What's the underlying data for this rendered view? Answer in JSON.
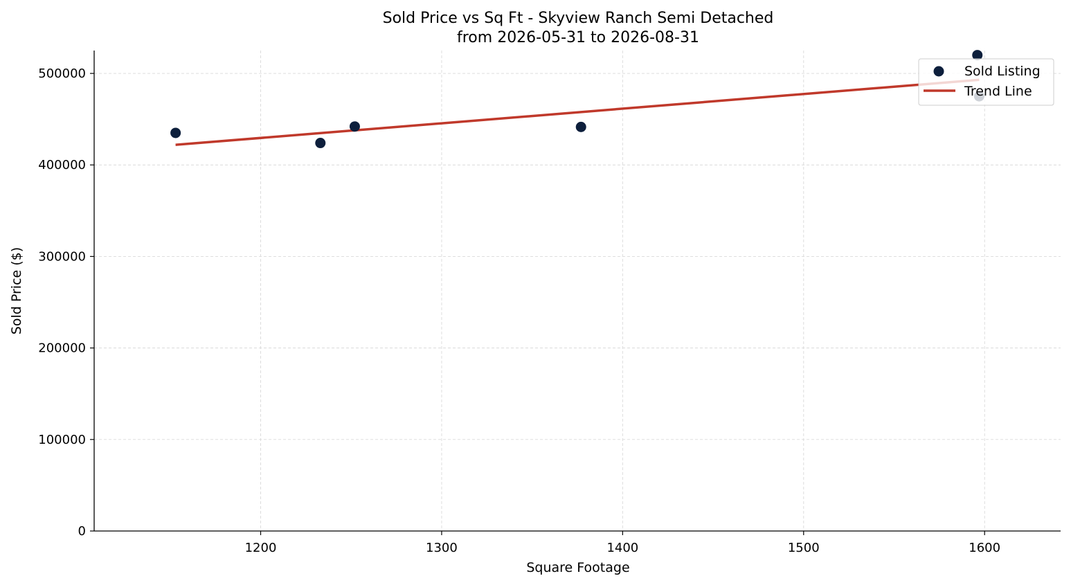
{
  "chart_data": {
    "type": "scatter",
    "title": "Sold Price vs Sq Ft - Skyview Ranch Semi Detached",
    "subtitle": "from 2026-05-31 to 2026-08-31",
    "xlabel": "Square Footage",
    "ylabel": "Sold Price ($)",
    "xlim": [
      1108,
      1642
    ],
    "ylim": [
      0,
      525000
    ],
    "xticks": [
      1200,
      1300,
      1400,
      1500,
      1600
    ],
    "yticks": [
      0,
      100000,
      200000,
      300000,
      400000,
      500000
    ],
    "grid": true,
    "legend_position": "top-right",
    "series": [
      {
        "name": "Sold Listing",
        "kind": "scatter",
        "color": "#0d1f3c",
        "points": [
          {
            "x": 1153,
            "y": 435000
          },
          {
            "x": 1233,
            "y": 424000
          },
          {
            "x": 1252,
            "y": 442000
          },
          {
            "x": 1377,
            "y": 441500
          },
          {
            "x": 1596,
            "y": 520000
          },
          {
            "x": 1597,
            "y": 475000
          }
        ]
      },
      {
        "name": "Trend Line",
        "kind": "line",
        "color": "#c0392b",
        "points": [
          {
            "x": 1153,
            "y": 422000
          },
          {
            "x": 1597,
            "y": 493000
          }
        ]
      }
    ]
  }
}
